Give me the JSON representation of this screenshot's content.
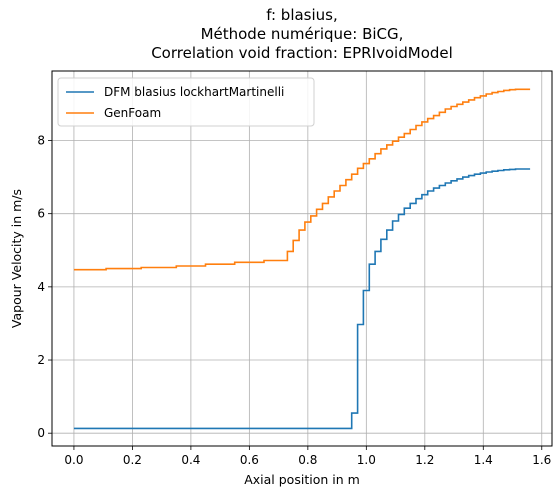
{
  "chart_data": {
    "type": "line",
    "title_lines": [
      "f: blasius,",
      "Méthode numérique: BiCG,",
      "Correlation void fraction: EPRIvoidModel"
    ],
    "xlabel": "Axial position in m",
    "ylabel": "Vapour Velocity in m/s",
    "xlim": [
      -0.075,
      1.635
    ],
    "ylim": [
      -0.35,
      9.9
    ],
    "xticks": [
      0.0,
      0.2,
      0.4,
      0.6,
      0.8,
      1.0,
      1.2,
      1.4,
      1.6
    ],
    "xtick_labels": [
      "0.0",
      "0.2",
      "0.4",
      "0.6",
      "0.8",
      "1.0",
      "1.2",
      "1.4",
      "1.6"
    ],
    "yticks": [
      0,
      2,
      4,
      6,
      8
    ],
    "ytick_labels": [
      "0",
      "2",
      "4",
      "6",
      "8"
    ],
    "grid": true,
    "legend_position": "top-left",
    "step_style": "post",
    "series": [
      {
        "name": "DFM blasius lockhartMartinelli",
        "color": "#1f77b4",
        "x": [
          0.0,
          0.95,
          0.97,
          0.99,
          1.01,
          1.03,
          1.05,
          1.07,
          1.09,
          1.11,
          1.13,
          1.15,
          1.17,
          1.19,
          1.21,
          1.23,
          1.25,
          1.27,
          1.29,
          1.31,
          1.33,
          1.35,
          1.37,
          1.39,
          1.41,
          1.43,
          1.45,
          1.47,
          1.49,
          1.51,
          1.56
        ],
        "y": [
          0.13,
          0.55,
          2.97,
          3.9,
          4.62,
          4.97,
          5.3,
          5.55,
          5.8,
          5.98,
          6.15,
          6.28,
          6.41,
          6.52,
          6.62,
          6.7,
          6.77,
          6.84,
          6.9,
          6.95,
          7.0,
          7.04,
          7.08,
          7.11,
          7.14,
          7.16,
          7.18,
          7.2,
          7.21,
          7.22,
          7.22
        ]
      },
      {
        "name": "GenFoam",
        "color": "#ff7f0e",
        "x": [
          0.0,
          0.11,
          0.23,
          0.35,
          0.45,
          0.55,
          0.65,
          0.73,
          0.75,
          0.77,
          0.79,
          0.81,
          0.83,
          0.85,
          0.87,
          0.89,
          0.91,
          0.93,
          0.95,
          0.97,
          0.99,
          1.01,
          1.03,
          1.05,
          1.07,
          1.09,
          1.11,
          1.13,
          1.15,
          1.17,
          1.19,
          1.21,
          1.23,
          1.25,
          1.27,
          1.29,
          1.31,
          1.33,
          1.35,
          1.37,
          1.39,
          1.41,
          1.43,
          1.45,
          1.47,
          1.49,
          1.51,
          1.56
        ],
        "y": [
          4.47,
          4.5,
          4.53,
          4.57,
          4.62,
          4.67,
          4.72,
          4.97,
          5.27,
          5.55,
          5.77,
          5.94,
          6.12,
          6.28,
          6.46,
          6.62,
          6.77,
          6.93,
          7.08,
          7.24,
          7.37,
          7.5,
          7.64,
          7.77,
          7.88,
          7.98,
          8.09,
          8.19,
          8.3,
          8.41,
          8.51,
          8.6,
          8.68,
          8.77,
          8.86,
          8.93,
          8.99,
          9.05,
          9.11,
          9.17,
          9.22,
          9.27,
          9.31,
          9.34,
          9.37,
          9.39,
          9.4,
          9.4
        ]
      }
    ]
  }
}
